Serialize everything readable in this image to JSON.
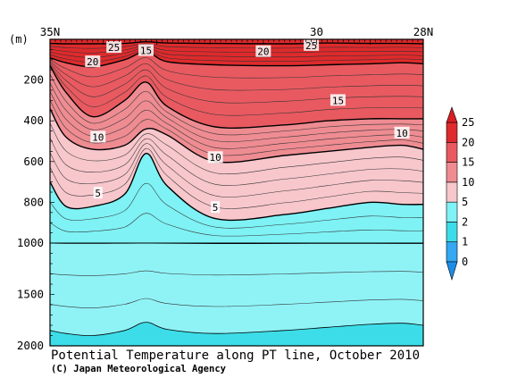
{
  "chart_data": {
    "type": "heatmap",
    "title": "Potential Temperature along PT line, October 2010",
    "credit": "(C) Japan Meteorological Agency",
    "y_unit_label": "(m)",
    "x_axis": {
      "range": [
        35,
        28
      ],
      "tick_labels": [
        {
          "lat": 35,
          "label": "35N"
        },
        {
          "lat": 30,
          "label": "30"
        },
        {
          "lat": 28,
          "label": "28N"
        }
      ]
    },
    "y_axis": {
      "upper_range_m": [
        0,
        1000
      ],
      "lower_range_m": [
        1000,
        2000
      ],
      "tick_labels": [
        {
          "depth": 200,
          "label": "200"
        },
        {
          "depth": 400,
          "label": "400"
        },
        {
          "depth": 600,
          "label": "600"
        },
        {
          "depth": 800,
          "label": "800"
        },
        {
          "depth": 1000,
          "label": "1000"
        },
        {
          "depth": 1500,
          "label": "1500"
        },
        {
          "depth": 2000,
          "label": "2000"
        }
      ]
    },
    "colorbar": {
      "levels": [
        "0",
        "1",
        "2",
        "5",
        "10",
        "15",
        "20",
        "25"
      ],
      "colors": [
        "#34a8f2",
        "#3cdde8",
        "#7ef2f5",
        "#f7c7cc",
        "#ee8c92",
        "#e85a60",
        "#de2a2c"
      ]
    },
    "section_isotherm_depths_m": {
      "lat": [
        35.0,
        34.7,
        34.2,
        33.6,
        33.2,
        32.8,
        31.9,
        30.6,
        29.8,
        29.0,
        28.4,
        28.0
      ],
      "25": [
        20,
        22,
        22,
        20,
        12,
        18,
        20,
        22,
        18,
        20,
        20,
        22
      ],
      "20": [
        90,
        115,
        135,
        100,
        60,
        110,
        125,
        130,
        125,
        120,
        115,
        120
      ],
      "15": [
        130,
        260,
        380,
        300,
        210,
        330,
        430,
        420,
        400,
        390,
        390,
        390
      ],
      "10": [
        340,
        480,
        540,
        520,
        440,
        470,
        600,
        570,
        550,
        530,
        520,
        540
      ],
      "5": [
        700,
        820,
        820,
        760,
        560,
        720,
        880,
        860,
        830,
        800,
        810,
        810
      ],
      "2": [
        1000,
        1003,
        1003,
        1002,
        1001,
        1002,
        1005,
        1004,
        1003,
        1003,
        1004,
        1004
      ],
      "1": [
        1850,
        1880,
        1900,
        1850,
        1770,
        1840,
        1880,
        1850,
        1820,
        1790,
        1780,
        1800
      ]
    },
    "contour_labels": [
      {
        "text": "25",
        "lat": 33.8,
        "depth": 40
      },
      {
        "text": "15",
        "lat": 33.2,
        "depth": 55
      },
      {
        "text": "25",
        "lat": 30.1,
        "depth": 30
      },
      {
        "text": "20",
        "lat": 34.2,
        "depth": 110
      },
      {
        "text": "20",
        "lat": 31.0,
        "depth": 60
      },
      {
        "text": "15",
        "lat": 29.6,
        "depth": 300
      },
      {
        "text": "10",
        "lat": 34.1,
        "depth": 480
      },
      {
        "text": "10",
        "lat": 31.9,
        "depth": 580
      },
      {
        "text": "10",
        "lat": 28.4,
        "depth": 460
      },
      {
        "text": "5",
        "lat": 34.1,
        "depth": 755
      },
      {
        "text": "5",
        "lat": 31.9,
        "depth": 825
      }
    ]
  }
}
